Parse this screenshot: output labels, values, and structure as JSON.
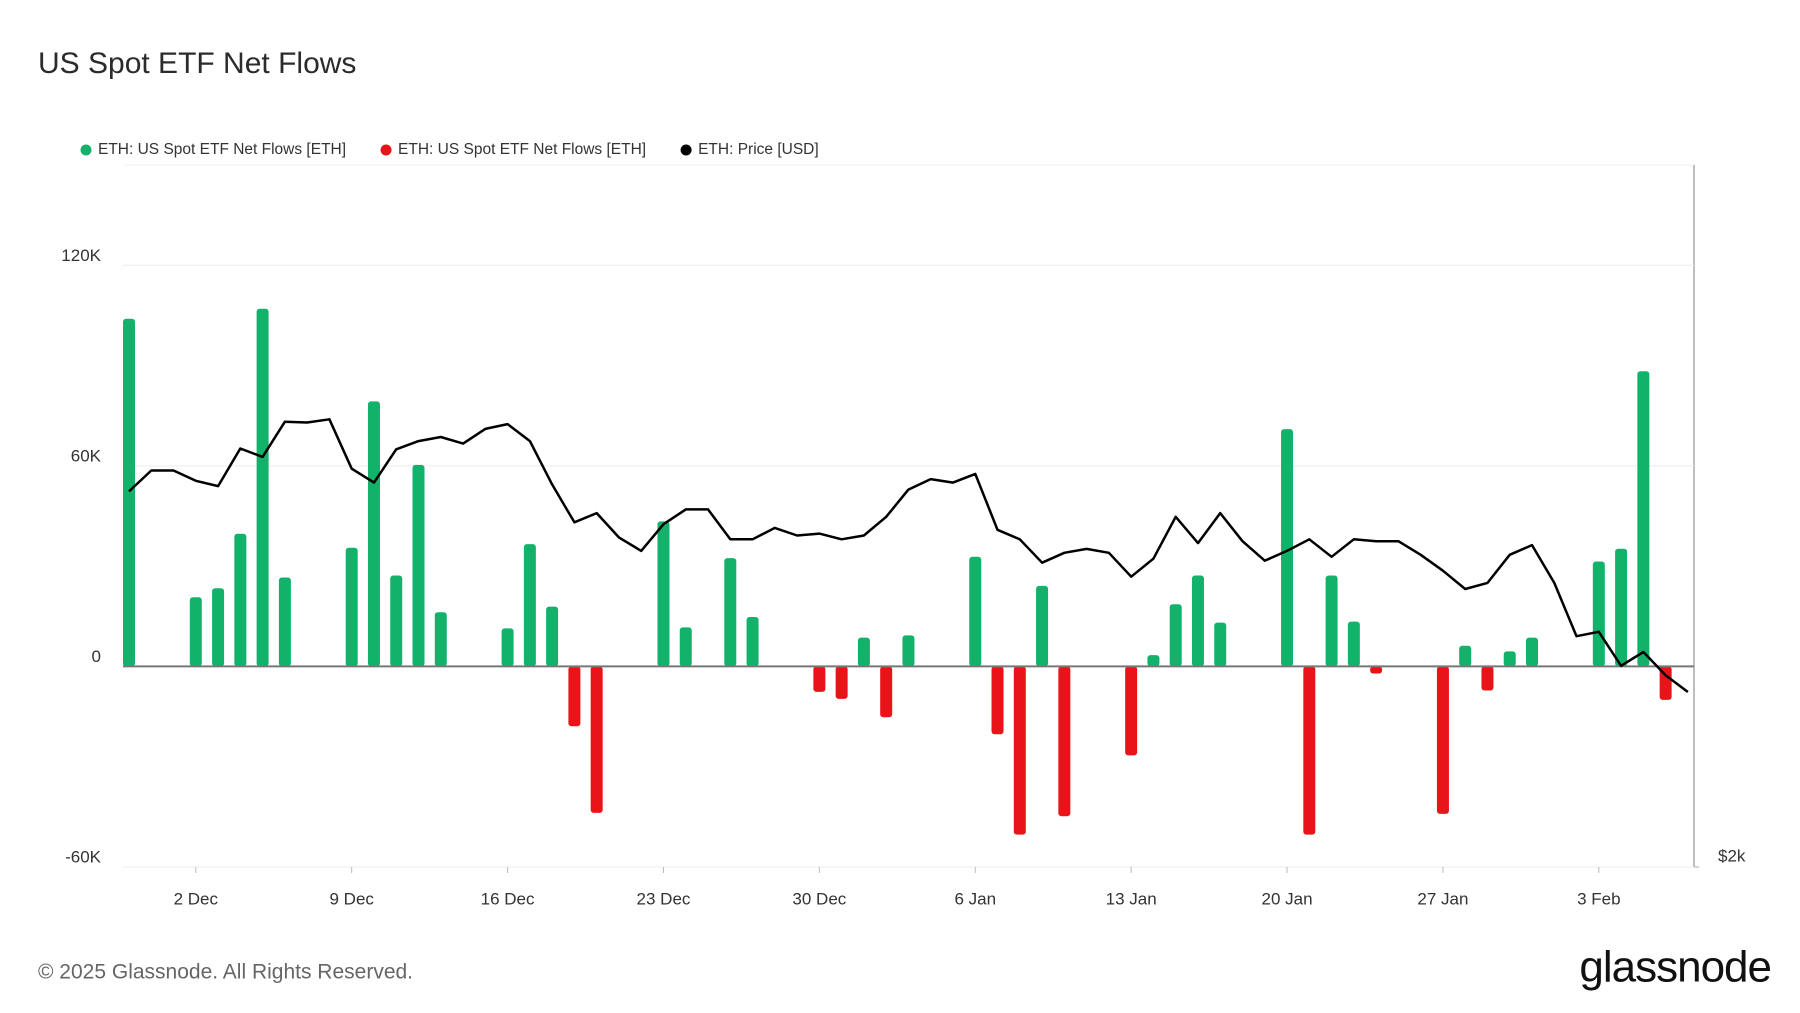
{
  "chart_data": {
    "type": "bar",
    "title": "US Spot ETF Net Flows",
    "categories": [
      null,
      null,
      null,
      "2 Dec",
      null,
      null,
      null,
      null,
      null,
      null,
      "9 Dec",
      null,
      null,
      null,
      null,
      null,
      null,
      "16 Dec",
      null,
      null,
      null,
      null,
      null,
      null,
      "23 Dec",
      null,
      null,
      null,
      null,
      null,
      null,
      "30 Dec",
      null,
      null,
      null,
      null,
      null,
      null,
      "6 Jan",
      null,
      null,
      null,
      null,
      null,
      null,
      "13 Jan",
      null,
      null,
      null,
      null,
      null,
      null,
      "20 Jan",
      null,
      null,
      null,
      null,
      null,
      null,
      "27 Jan",
      null,
      null,
      null,
      null,
      null,
      null,
      "3 Feb",
      null,
      null,
      null,
      null
    ],
    "series": [
      {
        "name": "ETH: US Spot ETF Net Flows [ETH]",
        "color": "#12b26b",
        "type": "bar",
        "values": [
          104000,
          null,
          null,
          20700,
          23400,
          39700,
          107000,
          26600,
          null,
          null,
          35500,
          79300,
          27200,
          60300,
          16200,
          null,
          null,
          11400,
          36600,
          17900,
          null,
          null,
          null,
          null,
          43400,
          11700,
          0,
          32400,
          14800,
          null,
          null,
          null,
          null,
          8600,
          null,
          9300,
          null,
          null,
          32800,
          null,
          null,
          24100,
          null,
          null,
          null,
          null,
          3400,
          18600,
          27200,
          13100,
          null,
          null,
          71000,
          null,
          27200,
          13400,
          null,
          null,
          null,
          null,
          6200,
          null,
          4500,
          8600,
          null,
          null,
          31400,
          35200,
          88300,
          null,
          null
        ]
      },
      {
        "name": "ETH: US Spot ETF Net Flows [ETH]",
        "color": "#e8141a",
        "type": "bar",
        "values": [
          null,
          null,
          null,
          null,
          null,
          null,
          null,
          null,
          null,
          null,
          null,
          null,
          null,
          null,
          null,
          null,
          null,
          null,
          null,
          null,
          -17900,
          -43800,
          null,
          null,
          null,
          null,
          null,
          null,
          null,
          null,
          null,
          -7600,
          -9700,
          null,
          -15200,
          null,
          null,
          null,
          null,
          -20300,
          -50300,
          null,
          -44800,
          null,
          null,
          -26600,
          null,
          null,
          null,
          null,
          null,
          null,
          null,
          -50300,
          null,
          null,
          -2100,
          null,
          null,
          -44100,
          null,
          -7200,
          null,
          null,
          null,
          null,
          null,
          null,
          null,
          -10000,
          null
        ]
      },
      {
        "name": "ETH: Price [USD]",
        "color": "#000000",
        "type": "line",
        "axis": "y2",
        "values": [
          3600,
          3720,
          3720,
          3660,
          3630,
          3850,
          3800,
          4015,
          4010,
          4030,
          3730,
          3650,
          3845,
          3895,
          3920,
          3880,
          3970,
          4000,
          3895,
          3640,
          3430,
          3480,
          3350,
          3280,
          3420,
          3500,
          3500,
          3340,
          3340,
          3400,
          3360,
          3370,
          3340,
          3360,
          3460,
          3610,
          3670,
          3650,
          3700,
          3390,
          3340,
          3220,
          3270,
          3290,
          3270,
          3150,
          3240,
          3460,
          3320,
          3480,
          3330,
          3230,
          3280,
          3340,
          3250,
          3340,
          3330,
          3330,
          3260,
          3180,
          3090,
          3120,
          3260,
          3310,
          3120,
          2870,
          2890,
          2740,
          2800,
          2700,
          2630
        ]
      }
    ],
    "ylim": [
      -60000,
      150000
    ],
    "yticks": [
      {
        "value": -60000,
        "label": "-60K"
      },
      {
        "value": 0,
        "label": "0"
      },
      {
        "value": 60000,
        "label": "60K"
      },
      {
        "value": 120000,
        "label": "120K"
      }
    ],
    "y2lim": [
      2000,
      6000
    ],
    "y2scale": "log",
    "y2ticks": [
      {
        "value": 2000,
        "label": "$2k"
      }
    ],
    "grid": true,
    "legend": "top-left"
  },
  "footer": {
    "copyright": "© 2025 Glassnode. All Rights Reserved.",
    "logo": "glassnode"
  }
}
